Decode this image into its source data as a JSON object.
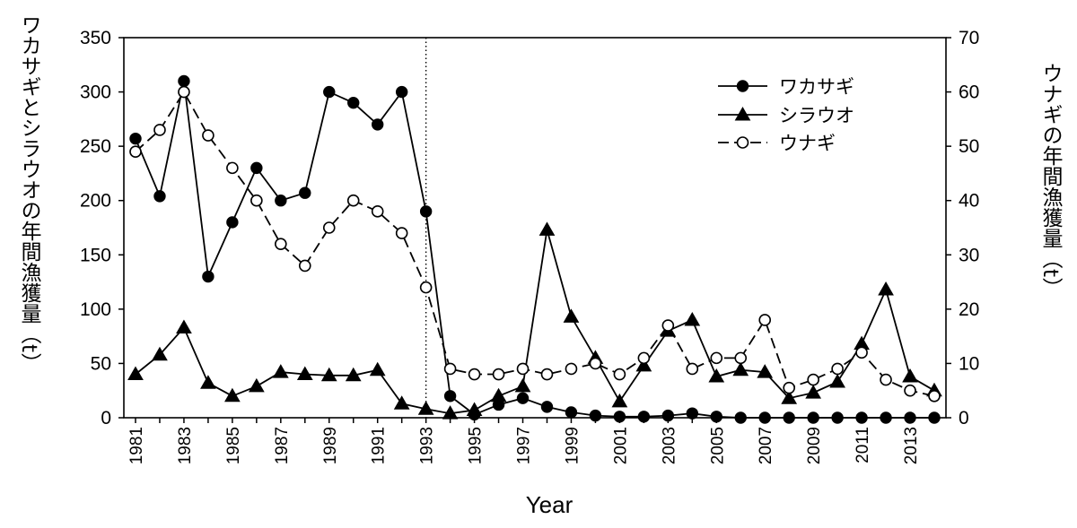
{
  "chart_data": {
    "type": "line",
    "xlabel": "Year",
    "ylabel_left": "ワカサギとシラウオの年間漁獲量（t）",
    "ylabel_right": "ウナギの年間漁獲量（t）",
    "x": [
      1981,
      1982,
      1983,
      1984,
      1985,
      1986,
      1987,
      1988,
      1989,
      1990,
      1991,
      1992,
      1993,
      1994,
      1995,
      1996,
      1997,
      1998,
      1999,
      2000,
      2001,
      2002,
      2003,
      2004,
      2005,
      2006,
      2007,
      2008,
      2009,
      2010,
      2011,
      2012,
      2013,
      2014
    ],
    "x_tick_labels": [
      "1981",
      "1983",
      "1985",
      "1987",
      "1989",
      "1991",
      "1993",
      "1995",
      "1997",
      "1999",
      "2001",
      "2003",
      "2005",
      "2007",
      "2009",
      "2011",
      "2013"
    ],
    "ylim_left": [
      0,
      350
    ],
    "ylim_right": [
      0,
      70
    ],
    "y_ticks_left": [
      "0",
      "50",
      "100",
      "150",
      "200",
      "250",
      "300",
      "350"
    ],
    "y_ticks_right": [
      "0",
      "10",
      "20",
      "30",
      "40",
      "50",
      "60",
      "70"
    ],
    "reference_line_x": 1993,
    "legend_position": "top-right",
    "series": [
      {
        "name": "ワカサギ",
        "axis": "left",
        "marker": "filled-circle",
        "line": "solid",
        "values": [
          257,
          204,
          310,
          130,
          180,
          230,
          200,
          207,
          300,
          290,
          270,
          300,
          190,
          20,
          3,
          12,
          18,
          10,
          5,
          2,
          1,
          1,
          2,
          4,
          1,
          0,
          0,
          0,
          0,
          0,
          0,
          0,
          0,
          0
        ]
      },
      {
        "name": "シラウオ",
        "axis": "left",
        "marker": "filled-triangle",
        "line": "solid",
        "values": [
          40,
          58,
          83,
          32,
          20,
          29,
          42,
          40,
          39,
          39,
          44,
          13,
          8,
          4,
          7,
          20,
          29,
          173,
          93,
          55,
          15,
          48,
          80,
          90,
          38,
          44,
          42,
          18,
          23,
          33,
          68,
          118,
          38,
          25
        ]
      },
      {
        "name": "ウナギ",
        "axis": "right",
        "marker": "open-circle",
        "line": "dashed",
        "values": [
          49,
          53,
          60,
          52,
          46,
          40,
          32,
          28,
          35,
          40,
          38,
          34,
          24,
          9,
          8,
          8,
          9,
          8,
          9,
          10,
          8,
          11,
          17,
          9,
          11,
          11,
          18,
          5.5,
          7,
          9,
          12,
          7,
          5,
          4
        ]
      }
    ]
  }
}
